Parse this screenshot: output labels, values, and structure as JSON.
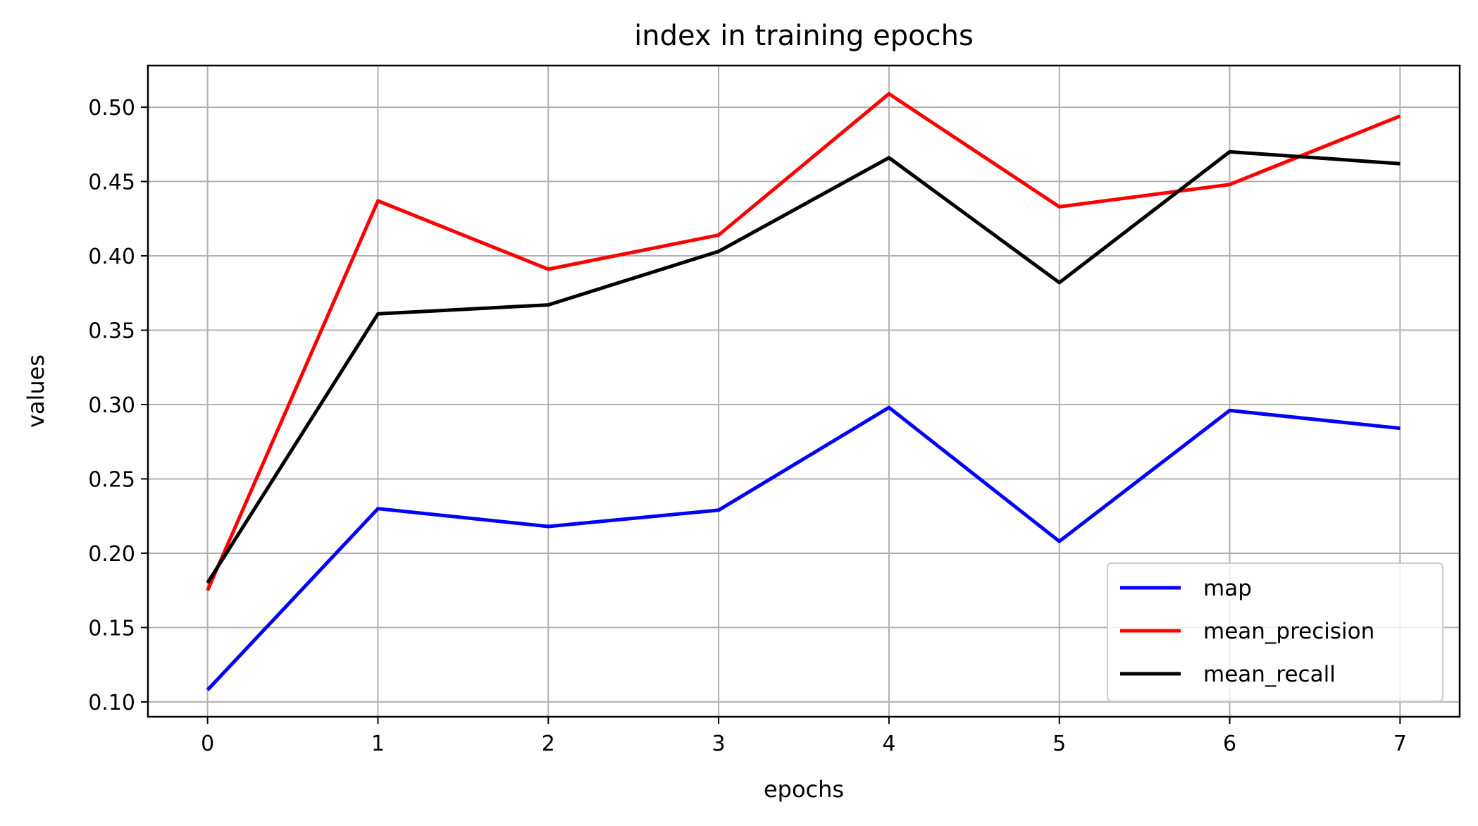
{
  "chart_data": {
    "type": "line",
    "title": "index in training epochs",
    "xlabel": "epochs",
    "ylabel": "values",
    "x": [
      0,
      1,
      2,
      3,
      4,
      5,
      6,
      7
    ],
    "xlim": [
      -0.35,
      7.35
    ],
    "ylim": [
      0.09,
      0.528
    ],
    "xticks": [
      0,
      1,
      2,
      3,
      4,
      5,
      6,
      7
    ],
    "yticks": [
      0.1,
      0.15,
      0.2,
      0.25,
      0.3,
      0.35,
      0.4,
      0.45,
      0.5
    ],
    "grid": true,
    "legend_position": "lower-right",
    "series": [
      {
        "name": "map",
        "color": "#0000ff",
        "values": [
          0.108,
          0.23,
          0.218,
          0.229,
          0.298,
          0.208,
          0.296,
          0.284
        ]
      },
      {
        "name": "mean_precision",
        "color": "#ff0000",
        "values": [
          0.175,
          0.437,
          0.391,
          0.414,
          0.509,
          0.433,
          0.448,
          0.494
        ]
      },
      {
        "name": "mean_recall",
        "color": "#000000",
        "values": [
          0.18,
          0.361,
          0.367,
          0.403,
          0.466,
          0.382,
          0.47,
          0.462
        ]
      }
    ]
  }
}
